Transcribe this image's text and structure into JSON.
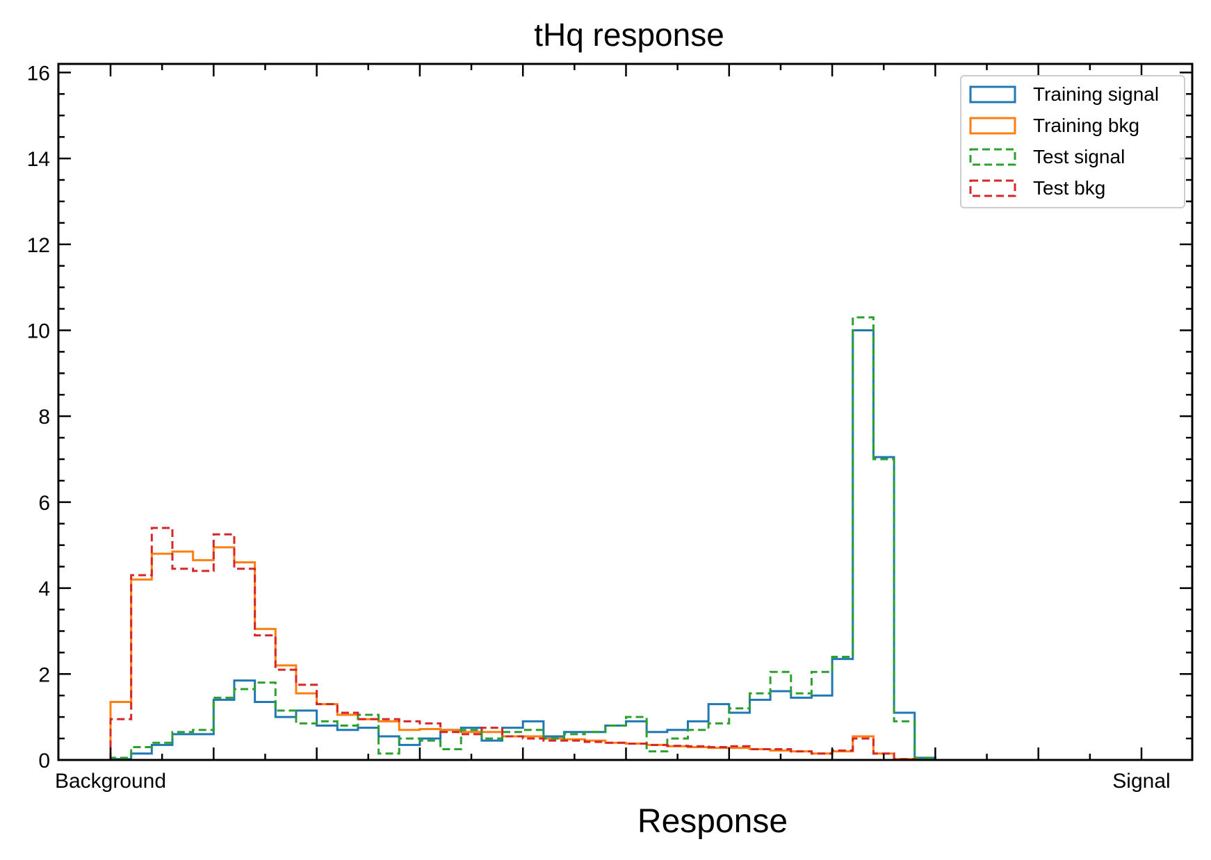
{
  "chart_data": {
    "type": "histogram",
    "title": "tHq response",
    "xlabel": "Response",
    "ylabel": "",
    "xlim": [
      0,
      1.1
    ],
    "ylim": [
      0,
      16.2
    ],
    "x_tick_labels": [
      {
        "x": 0,
        "label": "Background"
      },
      {
        "x": 1,
        "label": "Signal"
      }
    ],
    "y_ticks": [
      0,
      2,
      4,
      6,
      8,
      10,
      12,
      14,
      16
    ],
    "legend_position": "top-right",
    "grid": false,
    "bin_edges_start": 0,
    "bin_width": 0.02,
    "series": [
      {
        "name": "Training signal",
        "color": "#1f77b4",
        "linestyle": "solid",
        "values": [
          0.02,
          0.15,
          0.35,
          0.6,
          0.6,
          1.4,
          1.85,
          1.35,
          1.0,
          1.15,
          0.8,
          0.7,
          0.75,
          0.55,
          0.35,
          0.5,
          0.7,
          0.75,
          0.45,
          0.75,
          0.9,
          0.55,
          0.65,
          0.65,
          0.8,
          0.9,
          0.65,
          0.7,
          0.9,
          1.3,
          1.1,
          1.4,
          1.6,
          1.45,
          1.5,
          2.35,
          10.0,
          7.05,
          1.1,
          0.05
        ]
      },
      {
        "name": "Training bkg",
        "color": "#ff7f0e",
        "linestyle": "solid",
        "values": [
          1.35,
          4.2,
          4.8,
          4.85,
          4.65,
          4.95,
          4.6,
          3.05,
          2.2,
          1.55,
          1.3,
          1.05,
          0.95,
          0.9,
          0.7,
          0.72,
          0.7,
          0.65,
          0.65,
          0.55,
          0.55,
          0.5,
          0.48,
          0.45,
          0.4,
          0.38,
          0.35,
          0.32,
          0.3,
          0.28,
          0.28,
          0.25,
          0.22,
          0.2,
          0.15,
          0.2,
          0.55,
          0.15,
          0.02,
          0.0
        ]
      },
      {
        "name": "Test signal",
        "color": "#2ca02c",
        "linestyle": "dashed",
        "values": [
          0.05,
          0.3,
          0.4,
          0.65,
          0.7,
          1.45,
          1.65,
          1.8,
          1.15,
          0.85,
          0.9,
          0.8,
          1.05,
          0.15,
          0.5,
          0.45,
          0.25,
          0.7,
          0.5,
          0.65,
          0.7,
          0.5,
          0.6,
          0.65,
          0.8,
          1.0,
          0.2,
          0.5,
          0.7,
          0.85,
          1.2,
          1.55,
          2.05,
          1.55,
          2.05,
          2.4,
          10.3,
          7.0,
          0.9,
          0.05
        ]
      },
      {
        "name": "Test bkg",
        "color": "#d62728",
        "linestyle": "dashed",
        "values": [
          0.95,
          4.3,
          5.4,
          4.45,
          4.4,
          5.25,
          4.45,
          2.9,
          2.1,
          1.75,
          1.3,
          1.1,
          0.95,
          0.95,
          0.9,
          0.85,
          0.65,
          0.6,
          0.75,
          0.55,
          0.5,
          0.45,
          0.45,
          0.42,
          0.4,
          0.38,
          0.35,
          0.33,
          0.32,
          0.3,
          0.32,
          0.25,
          0.25,
          0.2,
          0.15,
          0.22,
          0.5,
          0.15,
          0.02,
          0.0
        ]
      }
    ]
  }
}
